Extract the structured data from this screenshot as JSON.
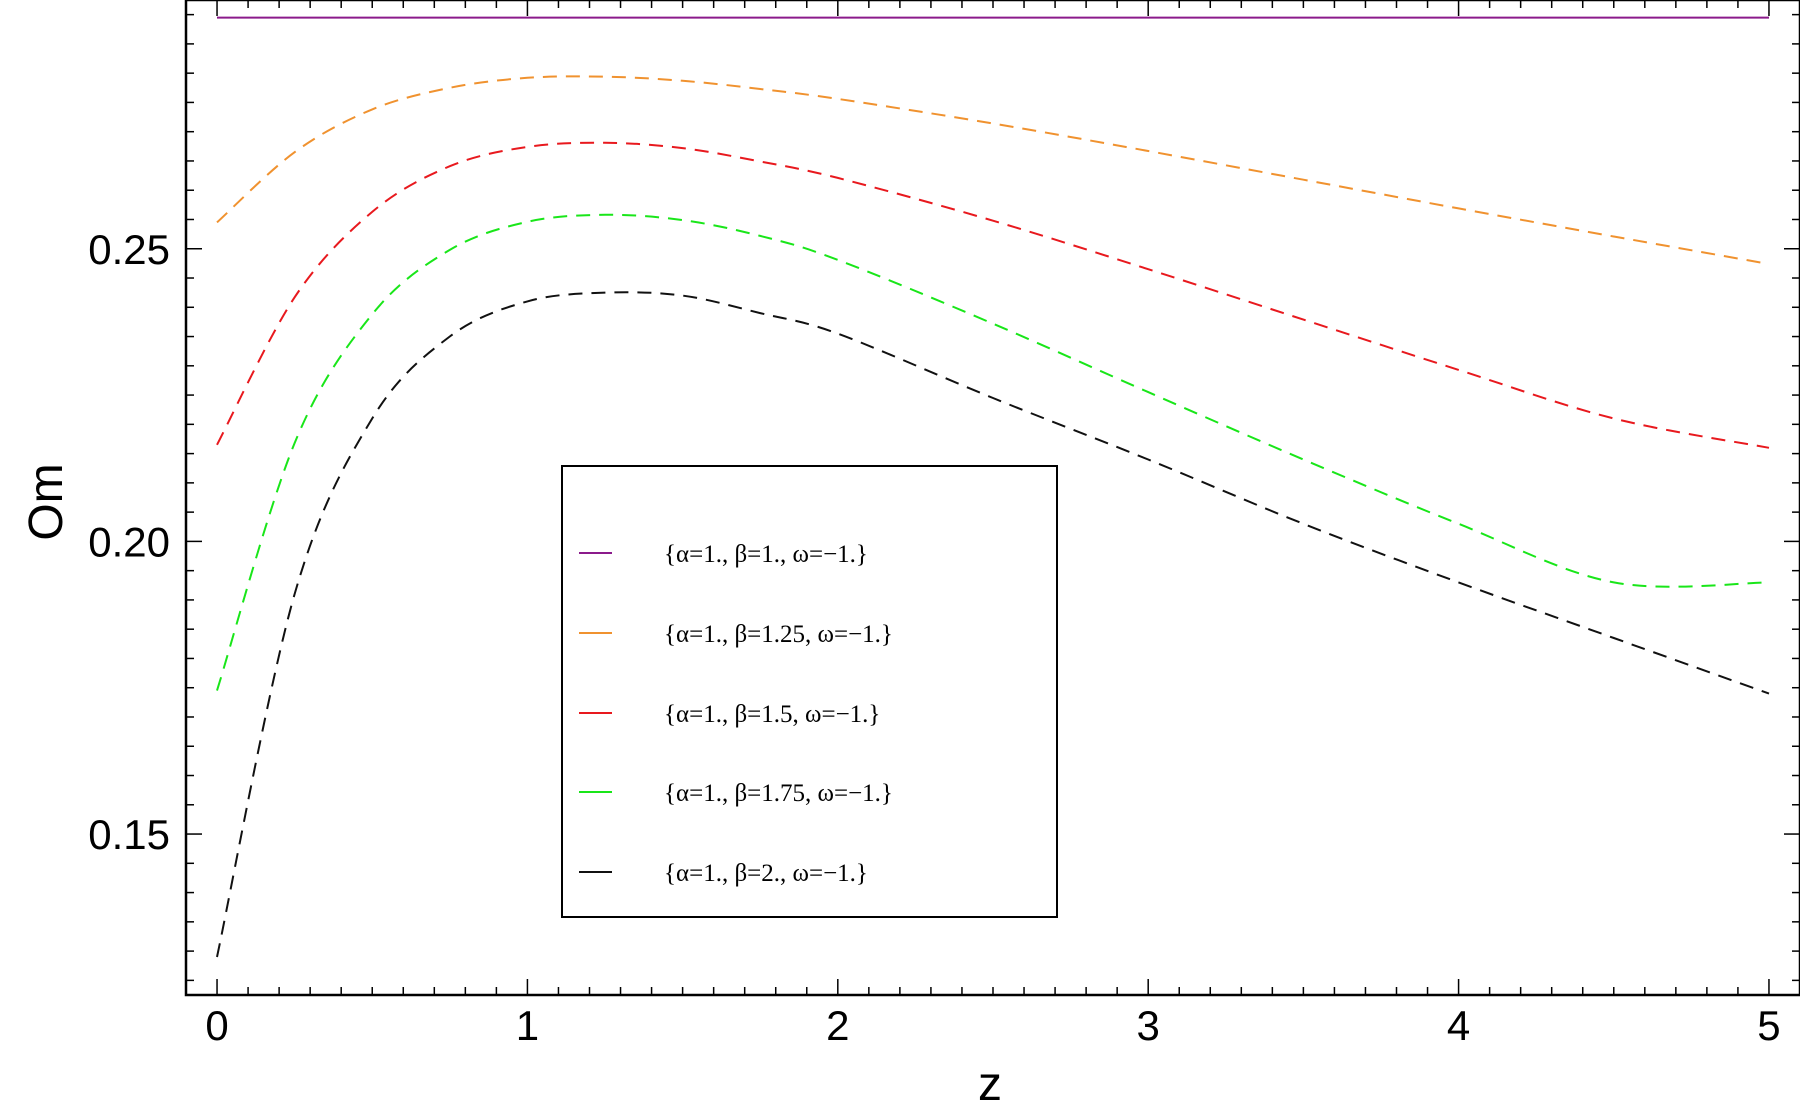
{
  "chart_data": {
    "type": "line",
    "title": "",
    "xlabel": "z",
    "ylabel": "Om",
    "xlim": [
      -0.1,
      5.1
    ],
    "ylim": [
      0.1225,
      0.2925
    ],
    "x_ticks": [
      {
        "value": 0,
        "label": "0"
      },
      {
        "value": 1,
        "label": "1"
      },
      {
        "value": 2,
        "label": "2"
      },
      {
        "value": 3,
        "label": "3"
      },
      {
        "value": 4,
        "label": "4"
      },
      {
        "value": 5,
        "label": "5"
      }
    ],
    "y_ticks": [
      {
        "value": 0.15,
        "label": "0.15"
      },
      {
        "value": 0.2,
        "label": "0.20"
      },
      {
        "value": 0.25,
        "label": "0.25"
      }
    ],
    "grid": false,
    "legend_position": "center",
    "x": [
      0,
      0.25,
      0.5,
      0.75,
      1,
      1.25,
      1.5,
      1.75,
      2,
      2.5,
      3,
      3.5,
      4,
      4.5,
      5
    ],
    "series": [
      {
        "name": "{α=1., β=1., ω=−1.}",
        "color": "#8b1a8b",
        "dashed": false,
        "values": [
          0.2895,
          0.2895,
          0.2895,
          0.2895,
          0.2895,
          0.2895,
          0.2895,
          0.2895,
          0.2895,
          0.2895,
          0.2895,
          0.2895,
          0.2895,
          0.2895,
          0.2895
        ]
      },
      {
        "name": "{α=1., β=1.25, ω=−1.}",
        "color": "#f0922f",
        "dashed": true,
        "values": [
          0.2545,
          0.2665,
          0.2738,
          0.2775,
          0.2792,
          0.2794,
          0.2787,
          0.2773,
          0.2756,
          0.2714,
          0.2667,
          0.2618,
          0.2569,
          0.2521,
          0.2474
        ]
      },
      {
        "name": "{α=1., β=1.5, ω=−1.}",
        "color": "#e8191e",
        "dashed": true,
        "values": [
          0.2165,
          0.2417,
          0.2563,
          0.2641,
          0.2674,
          0.2681,
          0.2672,
          0.2649,
          0.2621,
          0.2548,
          0.2465,
          0.2379,
          0.2293,
          0.221,
          0.216
        ]
      },
      {
        "name": "{α=1., β=1.75, ω=−1.}",
        "color": "#19e619",
        "dashed": true,
        "values": [
          0.1745,
          0.2168,
          0.2388,
          0.2498,
          0.2546,
          0.2558,
          0.2549,
          0.2522,
          0.2481,
          0.2372,
          0.2255,
          0.214,
          0.203,
          0.193,
          0.193
        ]
      },
      {
        "name": "{α=1., β=2., ω=−1.}",
        "color": "#111111",
        "dashed": true,
        "values": [
          0.129,
          0.191,
          0.221,
          0.235,
          0.241,
          0.2425,
          0.242,
          0.239,
          0.2355,
          0.2245,
          0.214,
          0.203,
          0.193,
          0.1835,
          0.174
        ]
      }
    ]
  }
}
